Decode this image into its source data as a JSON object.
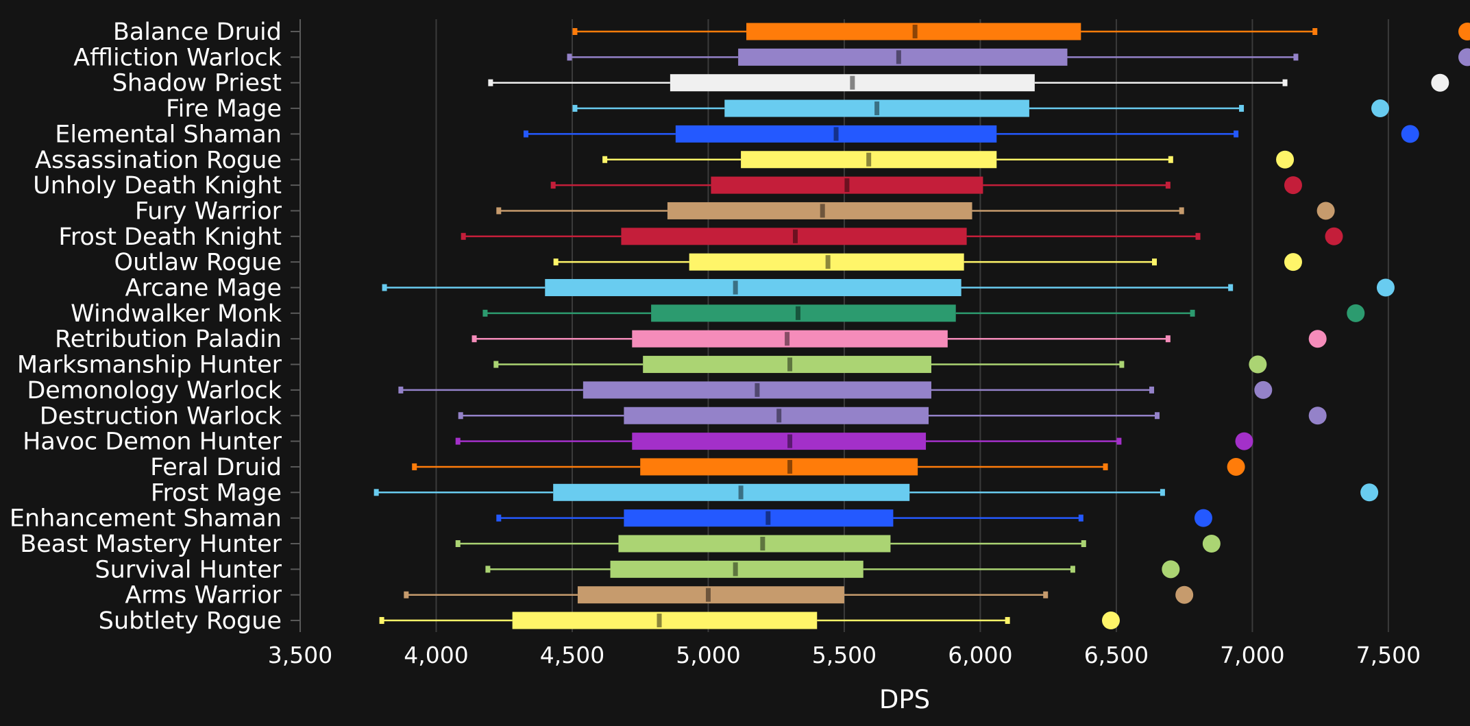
{
  "chart_data": {
    "type": "box",
    "title": "",
    "xlabel": "DPS",
    "ylabel": "",
    "xlim": [
      3500,
      7800
    ],
    "xticks": [
      3500,
      4000,
      4500,
      5000,
      5500,
      6000,
      6500,
      7000,
      7500
    ],
    "xtick_labels": [
      "3,500",
      "4,000",
      "4,500",
      "5,000",
      "5,500",
      "6,000",
      "6,500",
      "7,000",
      "7,500"
    ],
    "grid": "vertical",
    "series": [
      {
        "name": "Balance Druid",
        "color": "#ff7c0a",
        "min": 4510,
        "q1": 5140,
        "median": 5760,
        "q3": 6370,
        "max": 7230,
        "point": 7790
      },
      {
        "name": "Affliction Warlock",
        "color": "#9482c9",
        "min": 4490,
        "q1": 5110,
        "median": 5700,
        "q3": 6320,
        "max": 7160,
        "point": 7790
      },
      {
        "name": "Shadow Priest",
        "color": "#f0f0f0",
        "min": 4200,
        "q1": 4860,
        "median": 5530,
        "q3": 6200,
        "max": 7120,
        "point": 7690
      },
      {
        "name": "Fire Mage",
        "color": "#69ccf0",
        "min": 4510,
        "q1": 5060,
        "median": 5620,
        "q3": 6180,
        "max": 6960,
        "point": 7470
      },
      {
        "name": "Elemental Shaman",
        "color": "#2459ff",
        "min": 4330,
        "q1": 4880,
        "median": 5470,
        "q3": 6060,
        "max": 6940,
        "point": 7580
      },
      {
        "name": "Assassination Rogue",
        "color": "#fff569",
        "min": 4620,
        "q1": 5120,
        "median": 5590,
        "q3": 6060,
        "max": 6700,
        "point": 7120
      },
      {
        "name": "Unholy Death Knight",
        "color": "#c41e3a",
        "min": 4430,
        "q1": 5010,
        "median": 5510,
        "q3": 6010,
        "max": 6690,
        "point": 7150
      },
      {
        "name": "Fury Warrior",
        "color": "#c69b6d",
        "min": 4230,
        "q1": 4850,
        "median": 5420,
        "q3": 5970,
        "max": 6740,
        "point": 7270
      },
      {
        "name": "Frost Death Knight",
        "color": "#c41e3a",
        "min": 4100,
        "q1": 4680,
        "median": 5320,
        "q3": 5950,
        "max": 6800,
        "point": 7300
      },
      {
        "name": "Outlaw Rogue",
        "color": "#fff569",
        "min": 4440,
        "q1": 4930,
        "median": 5440,
        "q3": 5940,
        "max": 6640,
        "point": 7150
      },
      {
        "name": "Arcane Mage",
        "color": "#69ccf0",
        "min": 3810,
        "q1": 4400,
        "median": 5100,
        "q3": 5930,
        "max": 6920,
        "point": 7490
      },
      {
        "name": "Windwalker Monk",
        "color": "#2c9b6f",
        "min": 4180,
        "q1": 4790,
        "median": 5330,
        "q3": 5910,
        "max": 6780,
        "point": 7380
      },
      {
        "name": "Retribution Paladin",
        "color": "#f58cba",
        "min": 4140,
        "q1": 4720,
        "median": 5290,
        "q3": 5880,
        "max": 6690,
        "point": 7240
      },
      {
        "name": "Marksmanship Hunter",
        "color": "#abd473",
        "min": 4220,
        "q1": 4760,
        "median": 5300,
        "q3": 5820,
        "max": 6520,
        "point": 7020
      },
      {
        "name": "Demonology Warlock",
        "color": "#9482c9",
        "min": 3870,
        "q1": 4540,
        "median": 5180,
        "q3": 5820,
        "max": 6630,
        "point": 7040
      },
      {
        "name": "Destruction Warlock",
        "color": "#9482c9",
        "min": 4090,
        "q1": 4690,
        "median": 5260,
        "q3": 5810,
        "max": 6650,
        "point": 7240
      },
      {
        "name": "Havoc Demon Hunter",
        "color": "#a330c9",
        "min": 4080,
        "q1": 4720,
        "median": 5300,
        "q3": 5800,
        "max": 6510,
        "point": 6970
      },
      {
        "name": "Feral Druid",
        "color": "#ff7c0a",
        "min": 3920,
        "q1": 4750,
        "median": 5300,
        "q3": 5770,
        "max": 6460,
        "point": 6940
      },
      {
        "name": "Frost Mage",
        "color": "#69ccf0",
        "min": 3780,
        "q1": 4430,
        "median": 5120,
        "q3": 5740,
        "max": 6670,
        "point": 7430
      },
      {
        "name": "Enhancement Shaman",
        "color": "#2459ff",
        "min": 4230,
        "q1": 4690,
        "median": 5220,
        "q3": 5680,
        "max": 6370,
        "point": 6820
      },
      {
        "name": "Beast Mastery Hunter",
        "color": "#abd473",
        "min": 4080,
        "q1": 4670,
        "median": 5200,
        "q3": 5670,
        "max": 6380,
        "point": 6850
      },
      {
        "name": "Survival Hunter",
        "color": "#abd473",
        "min": 4190,
        "q1": 4640,
        "median": 5100,
        "q3": 5570,
        "max": 6340,
        "point": 6700
      },
      {
        "name": "Arms Warrior",
        "color": "#c69b6d",
        "min": 3890,
        "q1": 4520,
        "median": 5000,
        "q3": 5500,
        "max": 6240,
        "point": 6750
      },
      {
        "name": "Subtlety Rogue",
        "color": "#fff569",
        "min": 3800,
        "q1": 4280,
        "median": 4820,
        "q3": 5400,
        "max": 6100,
        "point": 6480
      }
    ]
  }
}
